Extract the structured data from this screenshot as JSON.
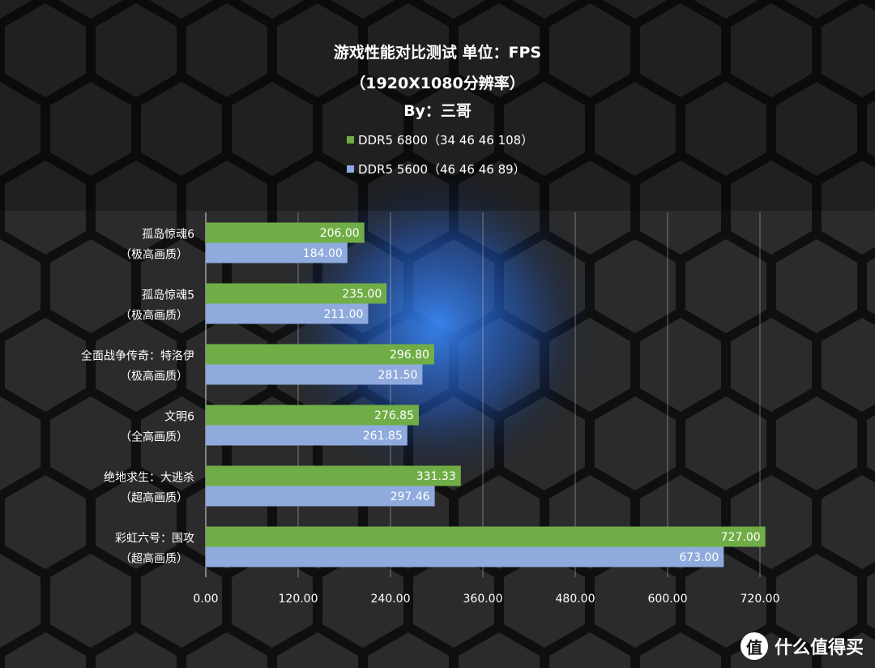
{
  "chart_data": {
    "type": "bar",
    "orientation": "horizontal",
    "title_lines": [
      "游戏性能对比测试 单位：FPS",
      "（1920X1080分辨率）",
      "By：三哥"
    ],
    "categories": [
      [
        "孤岛惊魂6",
        "（极高画质）"
      ],
      [
        "孤岛惊魂5",
        "（极高画质）"
      ],
      [
        "全面战争传奇：特洛伊",
        "（极高画质）"
      ],
      [
        "文明6",
        "（全高画质）"
      ],
      [
        "绝地求生：大逃杀",
        "（超高画质）"
      ],
      [
        "彩虹六号：围攻",
        "（超高画质）"
      ]
    ],
    "series": [
      {
        "name": "DDR5 6800（34 46 46 108）",
        "color": "#70ad47",
        "values": [
          206.0,
          235.0,
          296.8,
          276.85,
          331.33,
          727.0
        ],
        "labels": [
          "206.00",
          "235.00",
          "296.80",
          "276.85",
          "331.33",
          "727.00"
        ]
      },
      {
        "name": "DDR5 5600（46 46 46 89）",
        "color": "#8faadc",
        "values": [
          184.0,
          211.0,
          281.5,
          261.85,
          297.46,
          673.0
        ],
        "labels": [
          "184.00",
          "211.00",
          "281.50",
          "261.85",
          "297.46",
          "673.00"
        ]
      }
    ],
    "xlim": [
      0,
      720
    ],
    "xticks": [
      "0.00",
      "120.00",
      "240.00",
      "360.00",
      "480.00",
      "600.00",
      "720.00"
    ],
    "xtick_values": [
      0,
      120,
      240,
      360,
      480,
      600,
      720
    ],
    "grid": true,
    "legend_position": "top"
  },
  "watermark": {
    "logo": "值",
    "text": "什么值得买"
  }
}
